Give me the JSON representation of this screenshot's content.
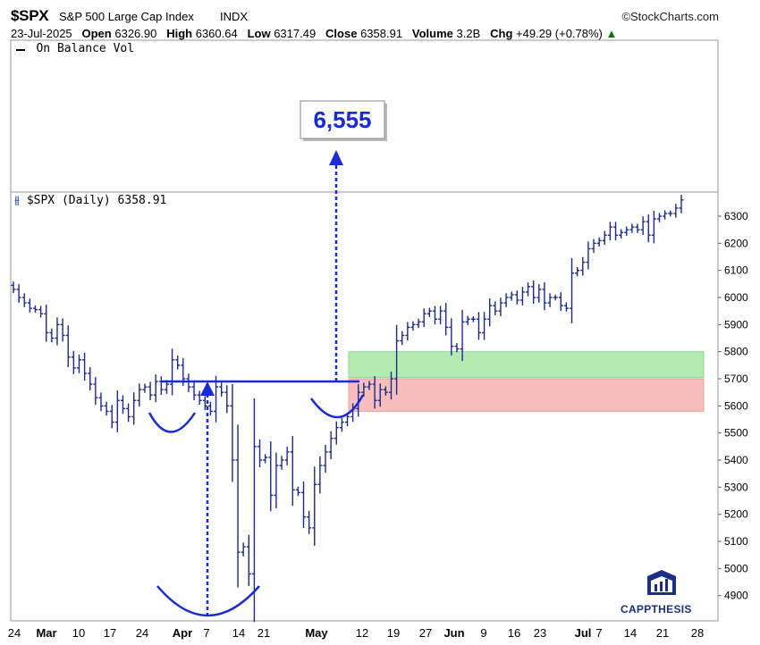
{
  "header": {
    "ticker": "$SPX",
    "name": "S&P 500 Large Cap Index",
    "exchange": "INDX",
    "source": "©StockCharts.com",
    "date": "23-Jul-2025",
    "open_label": "Open",
    "open": "6326.90",
    "high_label": "High",
    "high": "6360.64",
    "low_label": "Low",
    "low": "6317.49",
    "close_label": "Close",
    "close": "6358.91",
    "volume_label": "Volume",
    "volume": "3.2B",
    "chg_label": "Chg",
    "chg": "+49.29 (+0.78%)",
    "chg_arrow": "▲"
  },
  "obv_panel": {
    "label": "On Balance Vol"
  },
  "price_panel": {
    "label": "$SPX (Daily) 6358.91"
  },
  "target_label": "6,555",
  "logo": {
    "text": "CAPPTHESIS"
  },
  "colors": {
    "bars": "#1a2a8c",
    "annotation": "#1a2ad6",
    "support_zone": "#9ee69e",
    "risk_zone": "#f2a0a0",
    "chg_up": "#0b7a00"
  },
  "chart_data": {
    "type": "ohlc",
    "yticks": [
      4900,
      5000,
      5100,
      5200,
      5300,
      5400,
      5500,
      5600,
      5700,
      5800,
      5900,
      6000,
      6100,
      6200,
      6300
    ],
    "ylim": [
      4830,
      6360
    ],
    "x_ticks": [
      {
        "label": "24",
        "bold": false
      },
      {
        "label": "Mar",
        "bold": true
      },
      {
        "label": "10",
        "bold": false
      },
      {
        "label": "17",
        "bold": false
      },
      {
        "label": "24",
        "bold": false
      },
      {
        "label": "Apr",
        "bold": true
      },
      {
        "label": "7",
        "bold": false
      },
      {
        "label": "14",
        "bold": false
      },
      {
        "label": "21",
        "bold": false
      },
      {
        "label": "May",
        "bold": true
      },
      {
        "label": "12",
        "bold": false
      },
      {
        "label": "19",
        "bold": false
      },
      {
        "label": "27",
        "bold": false
      },
      {
        "label": "Jun",
        "bold": true
      },
      {
        "label": "9",
        "bold": false
      },
      {
        "label": "16",
        "bold": false
      },
      {
        "label": "23",
        "bold": false
      },
      {
        "label": "Jul",
        "bold": true
      },
      {
        "label": "7",
        "bold": false
      },
      {
        "label": "14",
        "bold": false
      },
      {
        "label": "21",
        "bold": false
      },
      {
        "label": "28",
        "bold": false
      }
    ],
    "closes": [
      6030,
      6000,
      5980,
      5960,
      5955,
      5940,
      5870,
      5850,
      5900,
      5860,
      5780,
      5740,
      5770,
      5720,
      5680,
      5630,
      5600,
      5580,
      5540,
      5620,
      5590,
      5560,
      5620,
      5660,
      5670,
      5640,
      5690,
      5660,
      5680,
      5770,
      5750,
      5700,
      5670,
      5640,
      5620,
      5600,
      5580,
      5670,
      5650,
      5600,
      5400,
      5060,
      5080,
      4980,
      5450,
      5400,
      5410,
      5270,
      5380,
      5400,
      5430,
      5290,
      5280,
      5190,
      5150,
      5310,
      5380,
      5430,
      5480,
      5520,
      5540,
      5560,
      5590,
      5650,
      5670,
      5680,
      5620,
      5660,
      5650,
      5700,
      5840,
      5860,
      5890,
      5900,
      5910,
      5940,
      5950,
      5920,
      5950,
      5890,
      5820,
      5810,
      5910,
      5920,
      5920,
      5870,
      5920,
      5970,
      5950,
      5980,
      6000,
      6010,
      5990,
      6020,
      6040,
      6000,
      6030,
      5980,
      6000,
      6000,
      5970,
      5960,
      6090,
      6100,
      6130,
      6180,
      6200,
      6210,
      6230,
      6260,
      6230,
      6240,
      6250,
      6260,
      6250,
      6280,
      6230,
      6290,
      6300,
      6310,
      6310,
      6330,
      6360
    ],
    "neckline": 5690,
    "target": 6555,
    "support_zone": [
      5705,
      5800
    ],
    "risk_zone": [
      5580,
      5700
    ]
  }
}
